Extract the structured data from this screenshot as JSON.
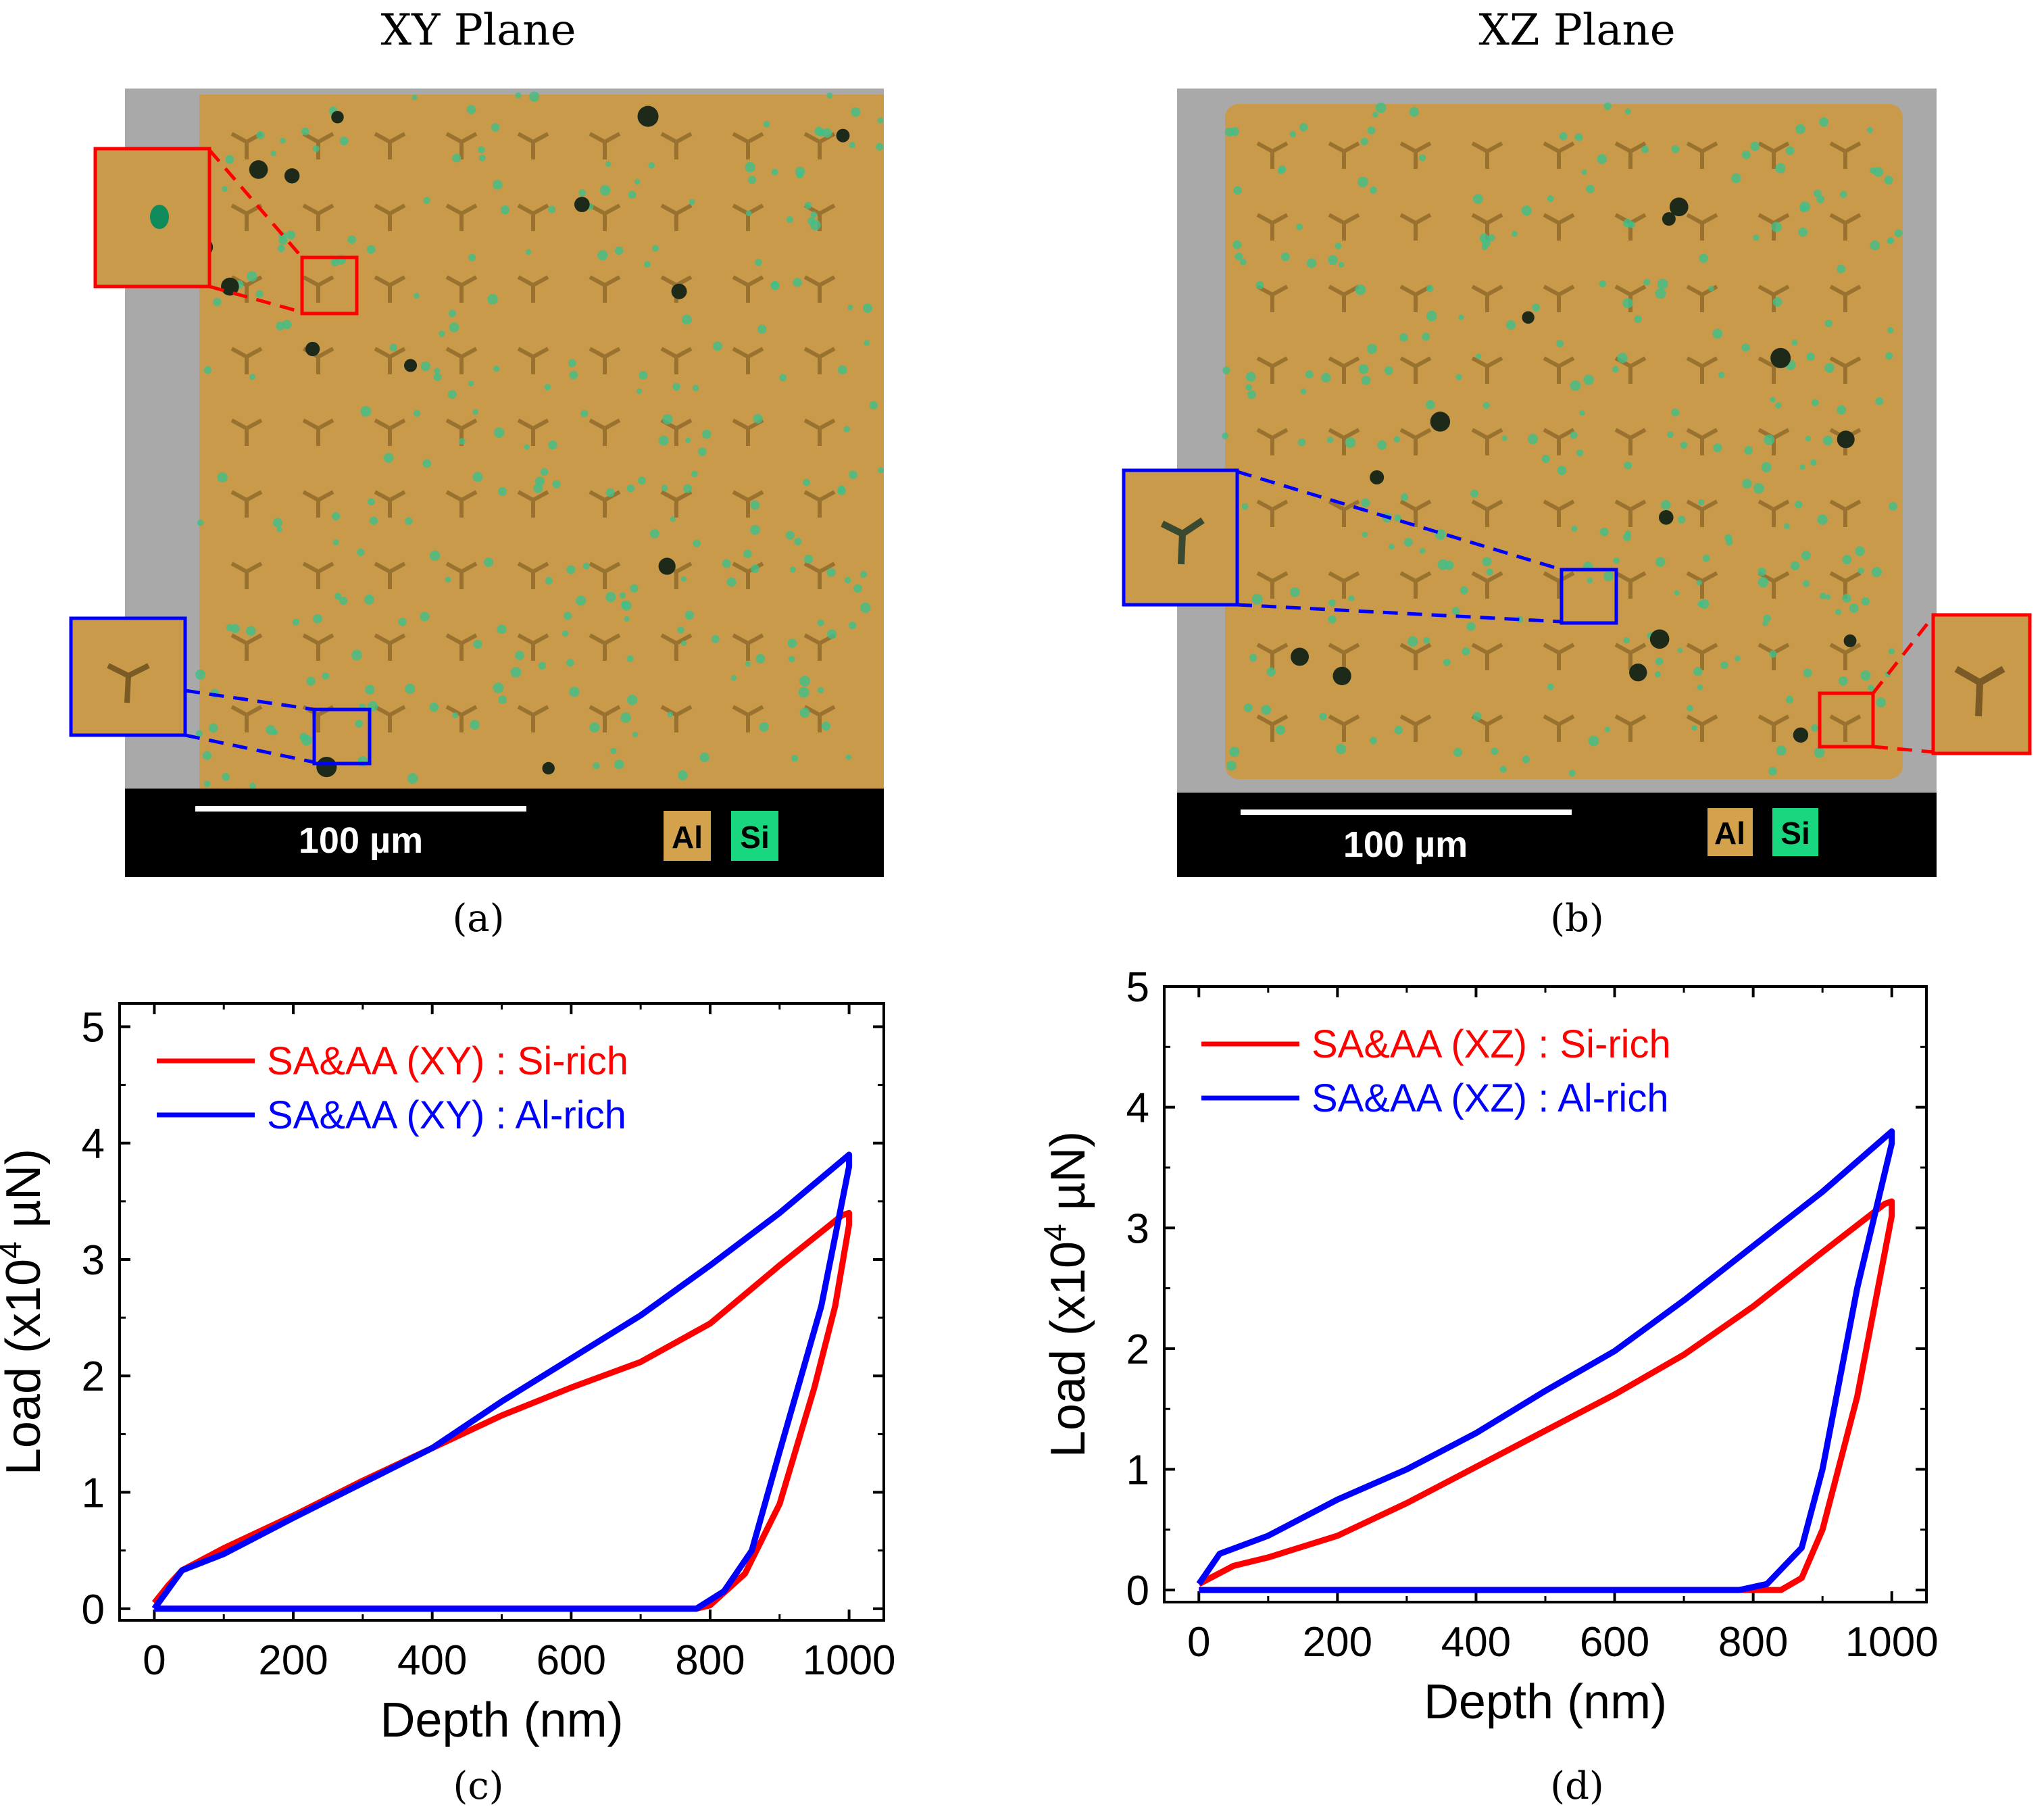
{
  "panels": {
    "a": {
      "title": "XY Plane",
      "label": "(a)",
      "scale_bar": "100 µm",
      "legend": [
        "Al",
        "Si"
      ]
    },
    "b": {
      "title": "XZ Plane",
      "label": "(b)",
      "scale_bar": "100 µm",
      "legend": [
        "Al",
        "Si"
      ]
    },
    "c": {
      "label": "(c)"
    },
    "d": {
      "label": "(d)"
    }
  },
  "colors": {
    "al": "#d4a24c",
    "si": "#19d77f",
    "red": "#ff0000",
    "blue": "#0000ff",
    "orange_map": "#c99a4a",
    "gray_bg": "#a7a7a7"
  },
  "chart_data": [
    {
      "type": "line",
      "xlabel": "Depth (nm)",
      "ylabel": "Load (x10^4 µN)",
      "ylabel_main": "Load (x10",
      "ylabel_sup": "4",
      "ylabel_end": " µN)",
      "xlim": [
        -50,
        1050
      ],
      "ylim": [
        -0.1,
        5.2
      ],
      "xticks": [
        0,
        200,
        400,
        600,
        800,
        1000
      ],
      "yticks": [
        0,
        1,
        2,
        3,
        4,
        5
      ],
      "legend_position": "top-left",
      "series": [
        {
          "name": "SA&AA (XY) : Si-rich",
          "color": "#ff0000",
          "x": [
            0,
            20,
            40,
            100,
            200,
            300,
            400,
            500,
            600,
            700,
            800,
            900,
            990,
            1000,
            1000,
            980,
            950,
            900,
            850,
            800,
            780,
            0
          ],
          "y": [
            0.05,
            0.2,
            0.33,
            0.52,
            0.8,
            1.1,
            1.38,
            1.66,
            1.9,
            2.12,
            2.45,
            2.95,
            3.38,
            3.4,
            3.3,
            2.6,
            1.9,
            0.9,
            0.3,
            0.03,
            0,
            0
          ]
        },
        {
          "name": "SA&AA (XY) : Al-rich",
          "color": "#0000ff",
          "x": [
            0,
            40,
            100,
            200,
            300,
            400,
            500,
            600,
            700,
            800,
            900,
            1000,
            1000,
            960,
            900,
            860,
            820,
            780,
            0
          ],
          "y": [
            0,
            0.33,
            0.47,
            0.78,
            1.08,
            1.38,
            1.78,
            2.15,
            2.52,
            2.95,
            3.4,
            3.9,
            3.8,
            2.6,
            1.35,
            0.5,
            0.15,
            0,
            0
          ]
        }
      ]
    },
    {
      "type": "line",
      "xlabel": "Depth (nm)",
      "ylabel": "Load (x10^4 µN)",
      "ylabel_main": "Load (x10",
      "ylabel_sup": "4",
      "ylabel_end": " µN)",
      "xlim": [
        -50,
        1050
      ],
      "ylim": [
        -0.1,
        5.0
      ],
      "xticks": [
        0,
        200,
        400,
        600,
        800,
        1000
      ],
      "yticks": [
        0,
        1,
        2,
        3,
        4,
        5
      ],
      "legend_position": "top-left",
      "series": [
        {
          "name": "SA&AA (XZ) : Si-rich",
          "color": "#ff0000",
          "x": [
            0,
            50,
            100,
            200,
            300,
            400,
            500,
            600,
            700,
            800,
            900,
            990,
            1000,
            1000,
            950,
            900,
            870,
            840,
            0
          ],
          "y": [
            0.05,
            0.2,
            0.27,
            0.45,
            0.72,
            1.02,
            1.32,
            1.62,
            1.95,
            2.35,
            2.8,
            3.2,
            3.22,
            3.1,
            1.6,
            0.5,
            0.1,
            0,
            0
          ]
        },
        {
          "name": "SA&AA (XZ) : Al-rich",
          "color": "#0000ff",
          "x": [
            0,
            30,
            100,
            200,
            300,
            400,
            500,
            600,
            700,
            800,
            900,
            1000,
            1000,
            950,
            900,
            870,
            820,
            780,
            0
          ],
          "y": [
            0.05,
            0.3,
            0.45,
            0.75,
            1.0,
            1.3,
            1.65,
            1.98,
            2.4,
            2.85,
            3.3,
            3.8,
            3.7,
            2.5,
            1.0,
            0.35,
            0.05,
            0,
            0
          ]
        }
      ]
    }
  ]
}
